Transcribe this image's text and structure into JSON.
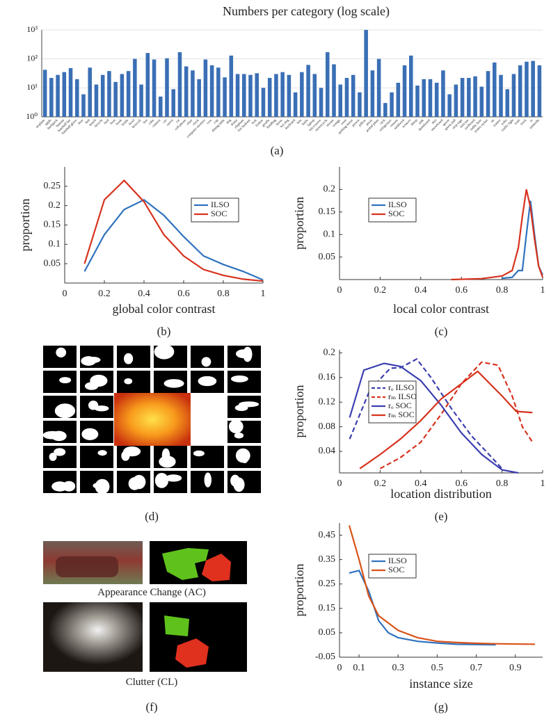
{
  "chart_data": [
    {
      "type": "bar",
      "title": "Numbers per category (log scale)",
      "caption": "(a)",
      "log_scale": true,
      "grid": true,
      "color": "#3a6fb5",
      "ylim": [
        1,
        1000
      ],
      "yticks": [
        {
          "value": 1,
          "label": "10⁰"
        },
        {
          "value": 10,
          "label": "10¹"
        },
        {
          "value": 100,
          "label": "10²"
        },
        {
          "value": 1000,
          "label": "10³"
        }
      ],
      "categories": [
        "airplane",
        "apple",
        "backpack",
        "banana",
        "baseball bat",
        "baseball glove",
        "bear",
        "bed",
        "bench",
        "bicycle",
        "bird",
        "boat",
        "book",
        "bottle",
        "bowl",
        "broccoli",
        "bus",
        "cake",
        "camera",
        "car",
        "carrot",
        "cat",
        "cell phone",
        "chair",
        "clock",
        "computer monitor",
        "cow",
        "cup",
        "dining table",
        "dog",
        "donut",
        "elephant",
        "fire hydrant",
        "fork",
        "frisbee",
        "giraffe",
        "handbag",
        "horse",
        "hot dog",
        "keyboard",
        "kite",
        "knife",
        "laptop",
        "microwave",
        "motorcycle",
        "mouse",
        "orange",
        "oven",
        "parking meter",
        "person",
        "pillow",
        "pizza",
        "potted plant",
        "rack",
        "refrigerator",
        "remote",
        "sandwich",
        "scissors",
        "sheep",
        "sink",
        "skateboard",
        "skis",
        "snowboard",
        "spoon",
        "sports ball",
        "stop sign",
        "suitcase",
        "surfboard",
        "teddy bear",
        "tennis racket",
        "tie",
        "toaster",
        "toilet",
        "traffic light",
        "train",
        "truck",
        "tv",
        "umbrella"
      ],
      "values": [
        42,
        22,
        28,
        35,
        48,
        20,
        6,
        50,
        13,
        28,
        38,
        16,
        30,
        38,
        100,
        13,
        160,
        95,
        5,
        105,
        9,
        170,
        55,
        40,
        20,
        95,
        60,
        50,
        23,
        130,
        30,
        30,
        28,
        32,
        10,
        22,
        30,
        35,
        28,
        7,
        35,
        62,
        30,
        10,
        170,
        65,
        13,
        22,
        28,
        7,
        1000,
        40,
        100,
        3,
        7,
        15,
        60,
        130,
        12,
        20,
        20,
        15,
        40,
        6,
        13,
        22,
        22,
        25,
        11,
        38,
        75,
        28,
        9,
        30,
        60,
        80,
        85,
        60
      ]
    },
    {
      "type": "line",
      "caption": "(b)",
      "xlabel": "global color contrast",
      "ylabel": "proportion",
      "legend": "upper right",
      "xlim": [
        0,
        1
      ],
      "ylim": [
        0,
        0.3
      ],
      "xticks": [
        0,
        0.2,
        0.4,
        0.6,
        0.8,
        1
      ],
      "yticks": [
        0.05,
        0.1,
        0.15,
        0.2,
        0.25
      ],
      "series": [
        {
          "name": "ILSO",
          "color": "#2f72bd",
          "x": [
            0.1,
            0.2,
            0.3,
            0.4,
            0.5,
            0.6,
            0.7,
            0.8,
            0.9,
            1
          ],
          "values": [
            0.03,
            0.125,
            0.19,
            0.215,
            0.175,
            0.12,
            0.07,
            0.048,
            0.03,
            0.008
          ]
        },
        {
          "name": "SOC",
          "color": "#d7321e",
          "x": [
            0.1,
            0.2,
            0.3,
            0.4,
            0.5,
            0.6,
            0.7,
            0.8,
            0.9,
            1
          ],
          "values": [
            0.05,
            0.215,
            0.265,
            0.21,
            0.125,
            0.07,
            0.035,
            0.02,
            0.01,
            0.005
          ]
        }
      ]
    },
    {
      "type": "line",
      "caption": "(c)",
      "xlabel": "local color contrast",
      "ylabel": "proportion",
      "legend": "upper left",
      "xlim": [
        0,
        1
      ],
      "ylim": [
        0,
        0.25
      ],
      "xticks": [
        0,
        0.2,
        0.4,
        0.6,
        0.8,
        1
      ],
      "yticks": [
        0.05,
        0.1,
        0.15,
        0.2
      ],
      "series": [
        {
          "name": "ILSO",
          "color": "#2f72bd",
          "x": [
            0.8,
            0.85,
            0.88,
            0.9,
            0.92,
            0.94,
            0.96,
            0.98,
            1
          ],
          "values": [
            0.003,
            0.005,
            0.02,
            0.02,
            0.1,
            0.175,
            0.1,
            0.03,
            0.01
          ]
        },
        {
          "name": "SOC",
          "color": "#d7321e",
          "x": [
            0.55,
            0.7,
            0.8,
            0.85,
            0.88,
            0.9,
            0.92,
            0.94,
            0.96,
            0.98,
            1
          ],
          "values": [
            0,
            0.002,
            0.008,
            0.02,
            0.07,
            0.14,
            0.2,
            0.16,
            0.09,
            0.03,
            0.005
          ]
        }
      ]
    },
    {
      "type": "line",
      "caption": "(e)",
      "xlabel": "location distribution",
      "ylabel": "proportion",
      "legend": "upper left",
      "xlim": [
        0,
        1
      ],
      "ylim": [
        0.005,
        0.205
      ],
      "xticks": [
        0,
        0.2,
        0.4,
        0.6,
        0.8,
        1
      ],
      "yticks": [
        0.04,
        0.08,
        0.12,
        0.16,
        0.2
      ],
      "series": [
        {
          "name": "rₒ ILSO",
          "color": "#3b3fb0",
          "dashed": true,
          "x": [
            0.05,
            0.15,
            0.25,
            0.3,
            0.38,
            0.45,
            0.55,
            0.65,
            0.75,
            0.8
          ],
          "values": [
            0.06,
            0.14,
            0.175,
            0.176,
            0.19,
            0.16,
            0.11,
            0.065,
            0.03,
            0.012
          ]
        },
        {
          "name": "rₘ ILSO",
          "color": "#d7321e",
          "dashed": true,
          "x": [
            0.2,
            0.3,
            0.4,
            0.5,
            0.6,
            0.7,
            0.78,
            0.85,
            0.9,
            0.95
          ],
          "values": [
            0.012,
            0.03,
            0.055,
            0.1,
            0.15,
            0.185,
            0.18,
            0.13,
            0.08,
            0.055
          ]
        },
        {
          "name": "rₒ SOC",
          "color": "#3b3fb0",
          "x": [
            0.05,
            0.12,
            0.22,
            0.3,
            0.4,
            0.5,
            0.6,
            0.7,
            0.8,
            0.88
          ],
          "values": [
            0.095,
            0.172,
            0.183,
            0.178,
            0.155,
            0.115,
            0.07,
            0.035,
            0.01,
            0.005
          ]
        },
        {
          "name": "rₘ SOC",
          "color": "#d7321e",
          "x": [
            0.1,
            0.2,
            0.3,
            0.4,
            0.5,
            0.6,
            0.68,
            0.8,
            0.87,
            0.95
          ],
          "values": [
            0.012,
            0.035,
            0.06,
            0.09,
            0.125,
            0.15,
            0.17,
            0.13,
            0.105,
            0.103
          ]
        }
      ]
    },
    {
      "type": "line",
      "caption": "(g)",
      "xlabel": "instance size",
      "ylabel": "proportion",
      "legend": "upper left",
      "xlim": [
        0,
        1.04
      ],
      "ylim": [
        -0.05,
        0.5
      ],
      "xticks": [
        0,
        0.1,
        0.3,
        0.5,
        0.7,
        0.9
      ],
      "yticks": [
        -0.05,
        0.05,
        0.15,
        0.25,
        0.35,
        0.45
      ],
      "series": [
        {
          "name": "ILSO",
          "color": "#2f72bd",
          "x": [
            0.05,
            0.1,
            0.15,
            0.2,
            0.25,
            0.3,
            0.4,
            0.5,
            0.6,
            0.7,
            0.8
          ],
          "values": [
            0.295,
            0.305,
            0.22,
            0.1,
            0.05,
            0.03,
            0.015,
            0.008,
            0.003,
            0.002,
            0.001
          ]
        },
        {
          "name": "SOC",
          "color": "#d95319",
          "x": [
            0.05,
            0.1,
            0.15,
            0.2,
            0.3,
            0.4,
            0.5,
            0.6,
            0.7,
            0.8,
            1
          ],
          "values": [
            0.49,
            0.35,
            0.2,
            0.12,
            0.06,
            0.03,
            0.015,
            0.01,
            0.007,
            0.005,
            0.003
          ]
        }
      ]
    }
  ],
  "image_panels": [
    {
      "caption": "(d)"
    },
    {
      "caption": "(f)",
      "labels": [
        "Appearance Change (AC)",
        "Clutter (CL)"
      ]
    }
  ]
}
